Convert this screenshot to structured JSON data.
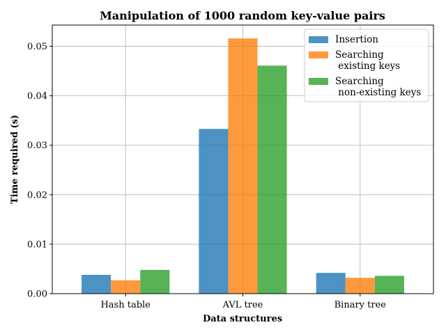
{
  "chart_data": {
    "type": "bar",
    "title": "Manipulation of 1000 random key-value pairs",
    "xlabel": "Data structures",
    "ylabel": "Time required (s)",
    "categories": [
      "Hash table",
      "AVL tree",
      "Binary tree"
    ],
    "ylim": [
      0,
      0.0543
    ],
    "yticks": [
      "0.00",
      "0.01",
      "0.02",
      "0.03",
      "0.04",
      "0.05"
    ],
    "grid": true,
    "legend_position": "top-right",
    "series": [
      {
        "name": "Insertion",
        "values": [
          0.0038,
          0.0333,
          0.0042
        ],
        "color": "#1f77b4"
      },
      {
        "name": "Searching\n existing keys",
        "values": [
          0.0027,
          0.0516,
          0.0032
        ],
        "color": "#ff7f0e"
      },
      {
        "name": "Searching\n non-existing keys",
        "values": [
          0.0048,
          0.0461,
          0.0036
        ],
        "color": "#2ca02c"
      }
    ],
    "bar_opacity": 0.8
  }
}
